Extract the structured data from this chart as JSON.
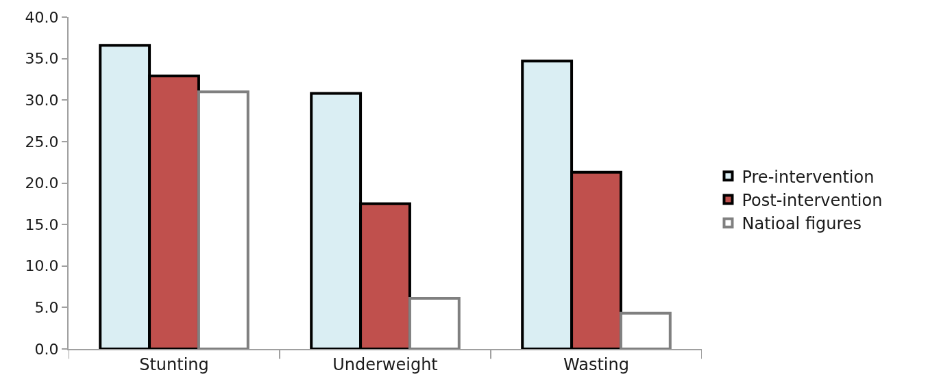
{
  "chart_data": {
    "type": "bar",
    "categories": [
      "Stunting",
      "Underweight",
      "Wasting"
    ],
    "series": [
      {
        "name": "Pre-intervention",
        "color": "#daeef3",
        "values": [
          36.6,
          30.8,
          34.7
        ]
      },
      {
        "name": "Post-intervention",
        "color": "#c0504d",
        "values": [
          32.9,
          17.5,
          21.3
        ]
      },
      {
        "name": "Natioal figures",
        "color": "#ffffff",
        "values": [
          31.0,
          6.1,
          4.3
        ]
      }
    ],
    "ylim": [
      0,
      40
    ],
    "yticks": [
      {
        "value": 0,
        "label": "0.0"
      },
      {
        "value": 5,
        "label": "5.0"
      },
      {
        "value": 10,
        "label": "10.0"
      },
      {
        "value": 15,
        "label": "15.0"
      },
      {
        "value": 20,
        "label": "20.0"
      },
      {
        "value": 25,
        "label": "25.0"
      },
      {
        "value": 30,
        "label": "30.0"
      },
      {
        "value": 35,
        "label": "35.0"
      },
      {
        "value": 40,
        "label": "40.0"
      }
    ],
    "grid": false,
    "legend": "right"
  }
}
